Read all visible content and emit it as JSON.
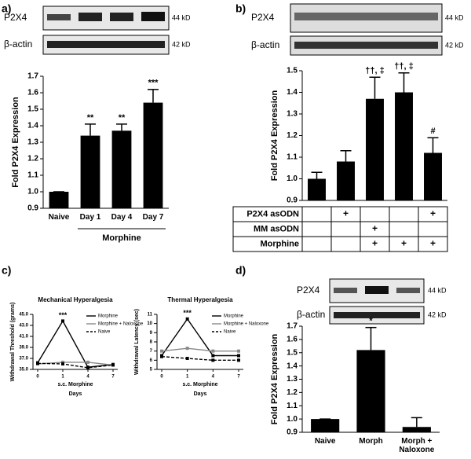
{
  "chart_data": [
    {
      "type": "bar",
      "panel": "a)",
      "blot": {
        "labels": [
          "P2X4",
          "β-actin"
        ],
        "sizes": [
          "44 kD",
          "42 kD"
        ]
      },
      "ylabel": "Fold P2X4 Expression",
      "categories": [
        "Naive",
        "Day 1",
        "Day 4",
        "Day 7"
      ],
      "values": [
        1.0,
        1.34,
        1.37,
        1.54
      ],
      "errors": [
        0,
        0.07,
        0.04,
        0.08
      ],
      "annotations": [
        null,
        "**",
        "**",
        "***"
      ],
      "group_label": "Morphine",
      "color": "#000000",
      "ylim": [
        0.9,
        1.7
      ],
      "yticks": [
        0.9,
        {
          "value": 1,
          "label": "1.0"
        },
        1.1,
        1.2,
        1.3,
        1.4,
        1.5,
        1.6,
        1.7
      ]
    },
    {
      "type": "bar",
      "panel": "b)",
      "blot": {
        "labels": [
          "P2X4",
          "β-actin"
        ],
        "sizes": [
          "44 kD",
          "42 kD"
        ]
      },
      "ylabel": "Fold P2X4 Expression",
      "values": [
        1.0,
        1.08,
        1.37,
        1.4,
        1.12
      ],
      "errors": [
        0.03,
        0.05,
        0.1,
        0.09,
        0.07
      ],
      "annotations": [
        null,
        null,
        "††, ‡",
        "††, ‡",
        "#"
      ],
      "color": "#000000",
      "ylim": [
        0.9,
        1.5
      ],
      "yticks": [
        0.9,
        {
          "value": 1,
          "label": "1.0"
        },
        1.1,
        1.2,
        1.3,
        1.4,
        1.5
      ],
      "table": {
        "rows": [
          {
            "label": "P2X4 asODN",
            "cells": [
              null,
              "+",
              null,
              null,
              "+"
            ]
          },
          {
            "label": "MM asODN",
            "cells": [
              null,
              null,
              "+",
              null,
              null
            ]
          },
          {
            "label": "Morphine",
            "cells": [
              null,
              null,
              "+",
              "+",
              "+"
            ]
          }
        ]
      }
    },
    {
      "type": "line",
      "panel": "c)",
      "title": "Mechanical Hyperalgesia",
      "ylabel": "Withdrawal Threshold (grams)",
      "xnote": "s.c. Morphine",
      "xlabel": "Days",
      "categories": [
        "0",
        "1",
        "4",
        "7"
      ],
      "series": [
        {
          "name": "Morphine",
          "color": "#000000",
          "dash": false,
          "values": [
            36.2,
            43.8,
            35.4,
            35.9
          ]
        },
        {
          "name": "Morphine + Naloxone",
          "color": "#888888",
          "dash": false,
          "values": [
            36.0,
            36.3,
            36.3,
            35.8
          ]
        },
        {
          "name": "Naive",
          "color": "#000000",
          "dash": true,
          "values": [
            36.1,
            36.0,
            35.3,
            35.8
          ]
        }
      ],
      "annotation": "***",
      "ylim": [
        35,
        45
      ],
      "yticks": [
        {
          "value": 35,
          "label": "35.0"
        },
        {
          "value": 37,
          "label": "37.0"
        },
        {
          "value": 39,
          "label": "39.0"
        },
        {
          "value": 41,
          "label": "41.0"
        },
        {
          "value": 43,
          "label": "43.0"
        },
        {
          "value": 45,
          "label": "45.0"
        }
      ]
    },
    {
      "type": "line",
      "title": "Thermal Hyperalgesia",
      "ylabel": "Withdrawal Latency (sec)",
      "xnote": "s.c. Morphine",
      "xlabel": "Days",
      "categories": [
        "0",
        "1",
        "4",
        "7"
      ],
      "series": [
        {
          "name": "Morphine",
          "color": "#000000",
          "dash": false,
          "values": [
            6.5,
            10.5,
            6.5,
            6.5
          ]
        },
        {
          "name": "Morphine + Naloxone",
          "color": "#888888",
          "dash": false,
          "values": [
            7.0,
            7.3,
            7.0,
            7.0
          ]
        },
        {
          "name": "Naive",
          "color": "#000000",
          "dash": true,
          "values": [
            6.4,
            6.2,
            6.0,
            6.0
          ]
        }
      ],
      "annotation": "***",
      "ylim": [
        5,
        11
      ],
      "yticks": [
        5,
        6,
        7,
        8,
        9,
        10,
        11
      ]
    },
    {
      "type": "bar",
      "panel": "d)",
      "blot": {
        "labels": [
          "P2X4",
          "β-actin"
        ],
        "sizes": [
          "44 kD",
          "42 kD"
        ]
      },
      "ylabel": "Fold P2X4 Expression",
      "categories": [
        "Naive",
        "Morph",
        "Morph + Naloxone"
      ],
      "values": [
        1.0,
        1.52,
        0.94
      ],
      "errors": [
        0,
        0.17,
        0.07
      ],
      "annotations": [
        null,
        "*",
        null
      ],
      "color": "#000000",
      "ylim": [
        0.9,
        1.7
      ],
      "yticks": [
        0.9,
        {
          "value": 1,
          "label": "1.0"
        },
        1.1,
        1.2,
        1.3,
        1.4,
        1.5,
        1.6,
        1.7
      ]
    }
  ]
}
